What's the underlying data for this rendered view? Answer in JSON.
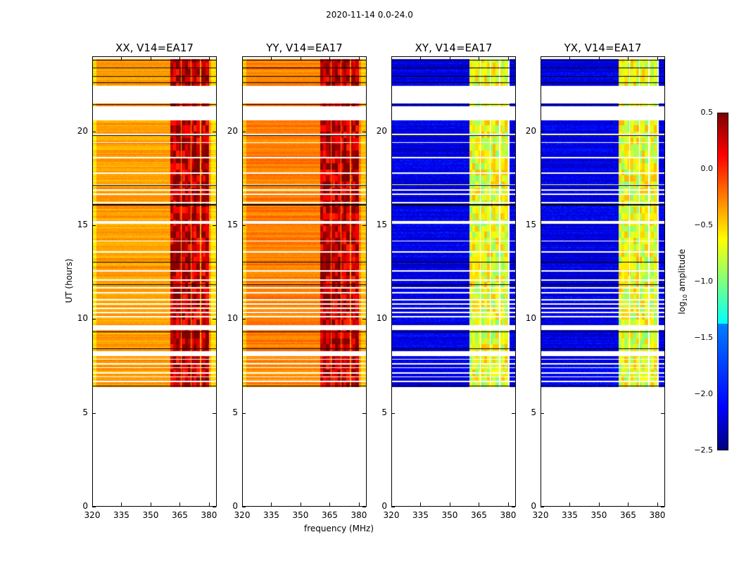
{
  "title": "2020-11-14 0.0-24.0",
  "chart_data": {
    "type": "heatmap",
    "xlabel": "frequency (MHz)",
    "ylabel": "UT (hours)",
    "xlim": [
      320,
      384
    ],
    "ylim": [
      0,
      24
    ],
    "xticks": [
      "320",
      "335",
      "350",
      "365",
      "380"
    ],
    "xtick_values": [
      320,
      335,
      350,
      365,
      380
    ],
    "yticks": [
      "0",
      "5",
      "10",
      "15",
      "20"
    ],
    "ytick_values": [
      0,
      5,
      10,
      15,
      20
    ],
    "panels": [
      {
        "title": "XX, V14=EA17",
        "background_level": -0.45,
        "band_level": 0.3
      },
      {
        "title": "YY, V14=EA17",
        "background_level": -0.35,
        "band_level": 0.3
      },
      {
        "title": "XY, V14=EA17",
        "background_level": -2.2,
        "band_level": -0.7
      },
      {
        "title": "YX, V14=EA17",
        "background_level": -2.2,
        "band_level": -0.7
      }
    ],
    "data_segments_hours": [
      [
        6.4,
        20.6
      ],
      [
        21.35,
        21.5
      ],
      [
        22.45,
        23.85
      ]
    ],
    "flagged_gaps_hours": [
      [
        15.1,
        15.25
      ],
      [
        9.45,
        9.7
      ],
      [
        8.05,
        8.3
      ],
      [
        19.83,
        19.88
      ],
      [
        19.39,
        19.44
      ],
      [
        18.6,
        18.65
      ],
      [
        17.77,
        17.82
      ],
      [
        17.14,
        17.19
      ],
      [
        16.87,
        16.92
      ],
      [
        16.65,
        16.7
      ],
      [
        16.2,
        16.25
      ],
      [
        14.14,
        14.19
      ],
      [
        13.57,
        13.62
      ],
      [
        12.56,
        12.61
      ],
      [
        12.07,
        12.12
      ],
      [
        11.66,
        11.71
      ],
      [
        11.4,
        11.45
      ],
      [
        11.02,
        11.07
      ],
      [
        10.8,
        10.85
      ],
      [
        10.57,
        10.62
      ],
      [
        10.35,
        10.4
      ],
      [
        10.12,
        10.17
      ],
      [
        7.84,
        7.89
      ],
      [
        7.61,
        7.66
      ],
      [
        7.39,
        7.44
      ],
      [
        7.12,
        7.17
      ],
      [
        6.9,
        6.95
      ],
      [
        6.67,
        6.72
      ]
    ],
    "black_lines_hours": [
      23.8,
      23.4,
      22.95,
      22.6,
      21.45,
      19.8,
      17.15,
      16.1,
      13.05,
      11.85,
      9.35,
      8.45,
      6.45
    ],
    "bright_bands_mhz": [
      [
        360,
        365.3
      ],
      [
        365.8,
        370.3
      ],
      [
        370.8,
        375.3
      ],
      [
        375.8,
        380
      ]
    ],
    "colorbar": {
      "label": "log10 amplitude",
      "range": [
        -2.5,
        0.5
      ],
      "ticks": [
        "0.5",
        "0.0",
        "−0.5",
        "−1.0",
        "−1.5",
        "−2.0",
        "−2.5"
      ],
      "tick_values": [
        0.5,
        0,
        -0.5,
        -1,
        -1.5,
        -2,
        -2.5
      ],
      "colormap": "jet"
    }
  }
}
